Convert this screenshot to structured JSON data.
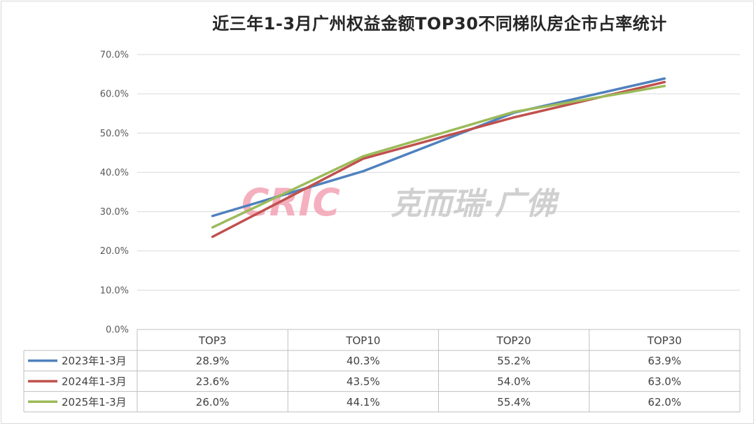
{
  "chart_data": {
    "type": "line",
    "title": "近三年1-3月广州权益金额TOP30不同梯队房企市占率统计",
    "categories": [
      "TOP3",
      "TOP10",
      "TOP20",
      "TOP30"
    ],
    "ylim": [
      0,
      70
    ],
    "ytick_labels": [
      "0.0%",
      "10.0%",
      "20.0%",
      "30.0%",
      "40.0%",
      "50.0%",
      "60.0%",
      "70.0%"
    ],
    "grid": true,
    "legend": "data-table",
    "series": [
      {
        "name": "2023年1-3月",
        "color": "#4f81bd",
        "values": [
          28.9,
          40.3,
          55.2,
          63.9
        ],
        "labels": [
          "28.9%",
          "40.3%",
          "55.2%",
          "63.9%"
        ]
      },
      {
        "name": "2024年1-3月",
        "color": "#c0504d",
        "values": [
          23.6,
          43.5,
          54.0,
          63.0
        ],
        "labels": [
          "23.6%",
          "43.5%",
          "54.0%",
          "63.0%"
        ]
      },
      {
        "name": "2025年1-3月",
        "color": "#9bbb59",
        "values": [
          26.0,
          44.1,
          55.4,
          62.0
        ],
        "labels": [
          "26.0%",
          "44.1%",
          "55.4%",
          "62.0%"
        ]
      }
    ]
  },
  "watermark": {
    "logo": "CRIC",
    "text": "克而瑞·广佛",
    "logo_color": "#f4a3b5",
    "text_color": "#c8c8c8"
  }
}
